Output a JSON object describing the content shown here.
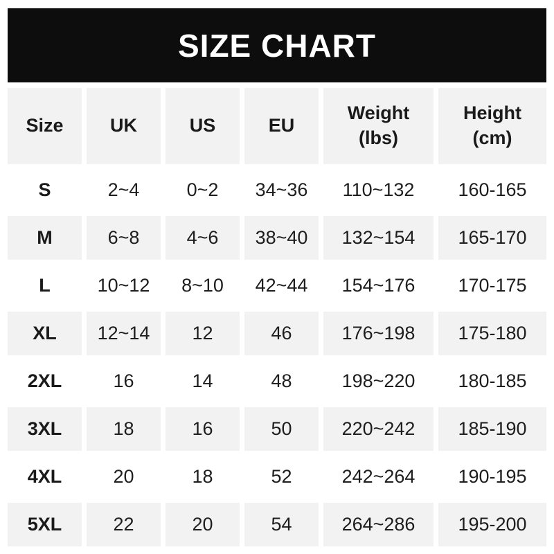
{
  "banner": {
    "title": "SIZE CHART"
  },
  "colors": {
    "banner_bg": "#0d0d0d",
    "banner_text": "#ffffff",
    "stripe_gray": "#f2f2f2",
    "row_white": "#ffffff",
    "text": "#1e1e1e"
  },
  "table": {
    "headers": [
      {
        "line1": "Size",
        "line2": ""
      },
      {
        "line1": "UK",
        "line2": ""
      },
      {
        "line1": "US",
        "line2": ""
      },
      {
        "line1": "EU",
        "line2": ""
      },
      {
        "line1": "Weight",
        "line2": "(lbs)"
      },
      {
        "line1": "Height",
        "line2": "(cm)"
      }
    ]
  },
  "chart_data": {
    "type": "table",
    "title": "SIZE CHART",
    "columns": [
      "Size",
      "UK",
      "US",
      "EU",
      "Weight (lbs)",
      "Height (cm)"
    ],
    "rows": [
      [
        "S",
        "2~4",
        "0~2",
        "34~36",
        "110~132",
        "160-165"
      ],
      [
        "M",
        "6~8",
        "4~6",
        "38~40",
        "132~154",
        "165-170"
      ],
      [
        "L",
        "10~12",
        "8~10",
        "42~44",
        "154~176",
        "170-175"
      ],
      [
        "XL",
        "12~14",
        "12",
        "46",
        "176~198",
        "175-180"
      ],
      [
        "2XL",
        "16",
        "14",
        "48",
        "198~220",
        "180-185"
      ],
      [
        "3XL",
        "18",
        "16",
        "50",
        "220~242",
        "185-190"
      ],
      [
        "4XL",
        "20",
        "18",
        "52",
        "242~264",
        "190-195"
      ],
      [
        "5XL",
        "22",
        "20",
        "54",
        "264~286",
        "195-200"
      ]
    ]
  }
}
